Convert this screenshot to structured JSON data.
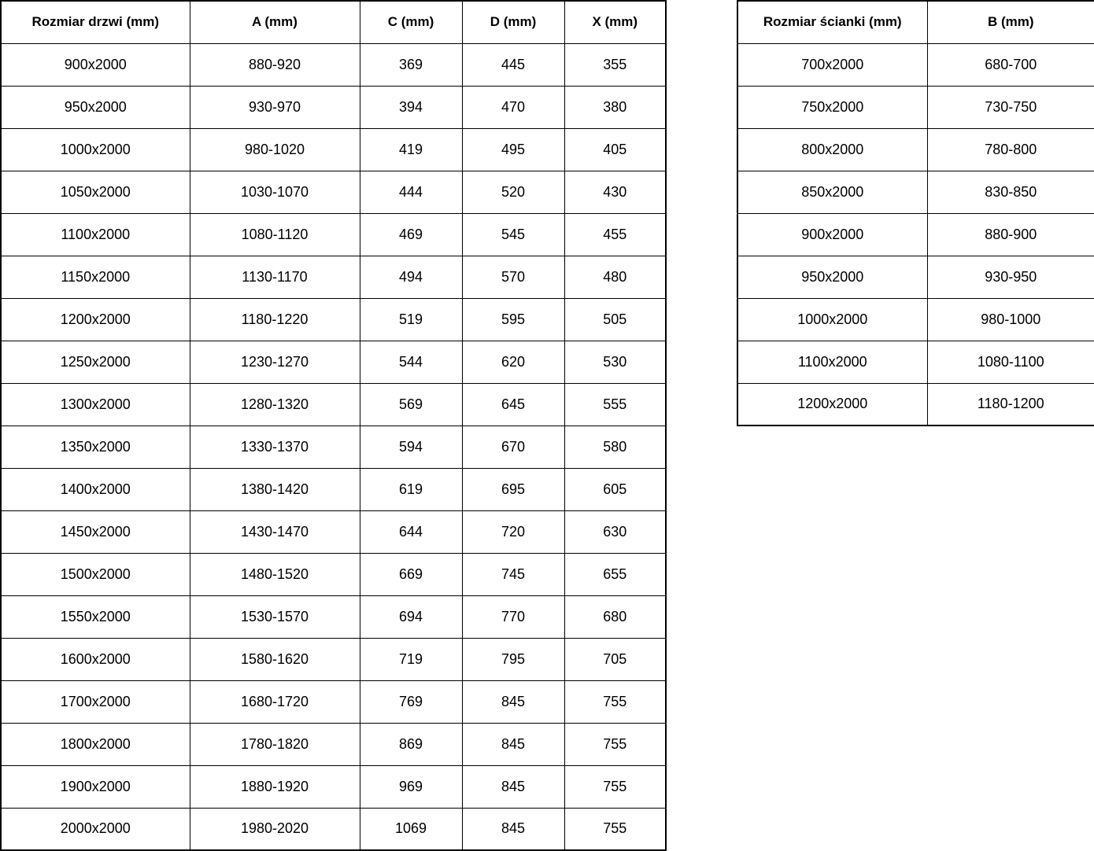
{
  "chart_data": [
    {
      "type": "table",
      "name": "door-sizes",
      "columns": [
        "Rozmiar drzwi (mm)",
        "A (mm)",
        "C (mm)",
        "D (mm)",
        "X (mm)"
      ],
      "rows": [
        [
          "900x2000",
          "880-920",
          "369",
          "445",
          "355"
        ],
        [
          "950x2000",
          "930-970",
          "394",
          "470",
          "380"
        ],
        [
          "1000x2000",
          "980-1020",
          "419",
          "495",
          "405"
        ],
        [
          "1050x2000",
          "1030-1070",
          "444",
          "520",
          "430"
        ],
        [
          "1100x2000",
          "1080-1120",
          "469",
          "545",
          "455"
        ],
        [
          "1150x2000",
          "1130-1170",
          "494",
          "570",
          "480"
        ],
        [
          "1200x2000",
          "1180-1220",
          "519",
          "595",
          "505"
        ],
        [
          "1250x2000",
          "1230-1270",
          "544",
          "620",
          "530"
        ],
        [
          "1300x2000",
          "1280-1320",
          "569",
          "645",
          "555"
        ],
        [
          "1350x2000",
          "1330-1370",
          "594",
          "670",
          "580"
        ],
        [
          "1400x2000",
          "1380-1420",
          "619",
          "695",
          "605"
        ],
        [
          "1450x2000",
          "1430-1470",
          "644",
          "720",
          "630"
        ],
        [
          "1500x2000",
          "1480-1520",
          "669",
          "745",
          "655"
        ],
        [
          "1550x2000",
          "1530-1570",
          "694",
          "770",
          "680"
        ],
        [
          "1600x2000",
          "1580-1620",
          "719",
          "795",
          "705"
        ],
        [
          "1700x2000",
          "1680-1720",
          "769",
          "845",
          "755"
        ],
        [
          "1800x2000",
          "1780-1820",
          "869",
          "845",
          "755"
        ],
        [
          "1900x2000",
          "1880-1920",
          "969",
          "845",
          "755"
        ],
        [
          "2000x2000",
          "1980-2020",
          "1069",
          "845",
          "755"
        ]
      ],
      "grid": true,
      "text_color": "#000000",
      "border_color": "#000000",
      "background_color": "#ffffff"
    },
    {
      "type": "table",
      "name": "wall-panel-sizes",
      "columns": [
        "Rozmiar ścianki (mm)",
        "B (mm)"
      ],
      "rows": [
        [
          "700x2000",
          "680-700"
        ],
        [
          "750x2000",
          "730-750"
        ],
        [
          "800x2000",
          "780-800"
        ],
        [
          "850x2000",
          "830-850"
        ],
        [
          "900x2000",
          "880-900"
        ],
        [
          "950x2000",
          "930-950"
        ],
        [
          "1000x2000",
          "980-1000"
        ],
        [
          "1100x2000",
          "1080-1100"
        ],
        [
          "1200x2000",
          "1180-1200"
        ]
      ],
      "grid": true,
      "text_color": "#000000",
      "border_color": "#000000",
      "background_color": "#ffffff"
    }
  ]
}
